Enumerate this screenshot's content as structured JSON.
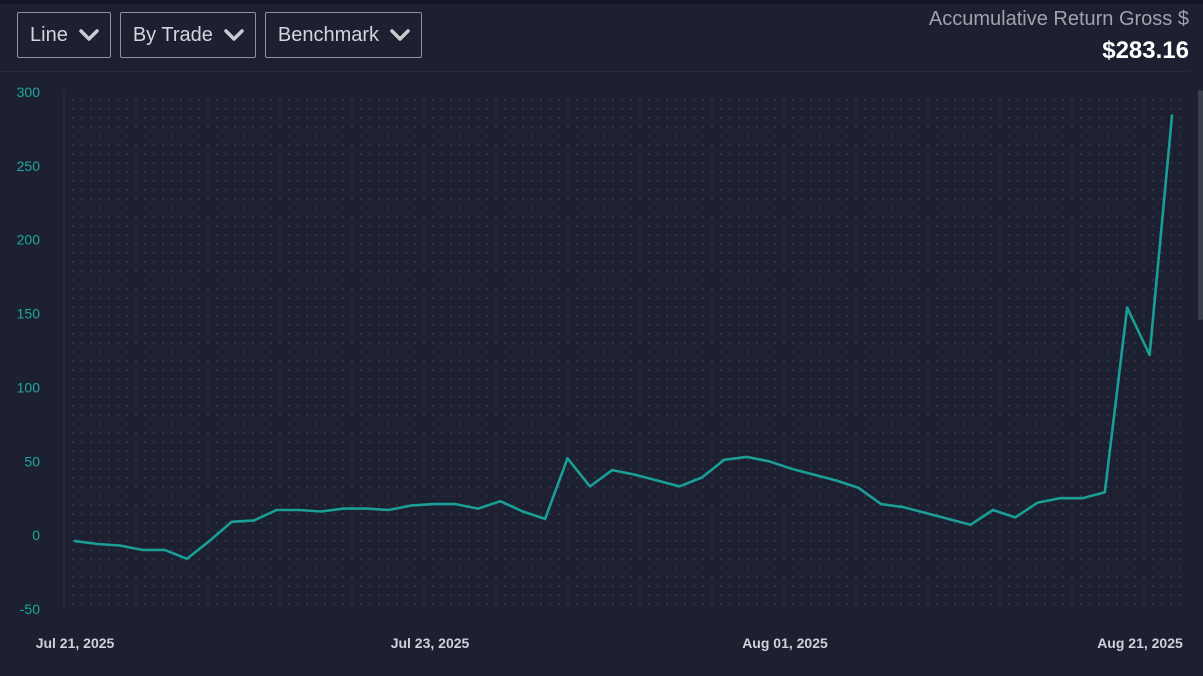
{
  "toolbar": {
    "chart_type": "Line",
    "grouping": "By Trade",
    "benchmark": "Benchmark"
  },
  "summary": {
    "title": "Accumulative Return Gross $",
    "value": "$283.16"
  },
  "colors": {
    "background": "#1c2030",
    "line": "#1a9e96",
    "y_tick": "#1fa89d",
    "x_tick": "#cfd2d8",
    "grid_dot": "#3a4052"
  },
  "icons": {
    "dropdown": "chevron-down-icon"
  },
  "chart_data": {
    "type": "line",
    "title": "",
    "xlabel": "",
    "ylabel": "",
    "ylim": [
      -50,
      300
    ],
    "y_ticks": [
      300,
      250,
      200,
      150,
      100,
      50,
      0,
      -50
    ],
    "x_tick_labels": [
      "Jul 21, 2025",
      "Jul 23, 2025",
      "Aug 01, 2025",
      "Aug 21, 2025"
    ],
    "grid": "dotted",
    "series": [
      {
        "values": [
          -4,
          -6,
          -7,
          -10,
          -10,
          -16,
          -4,
          9,
          10,
          17,
          17,
          16,
          18,
          18,
          17,
          20,
          21,
          21,
          18,
          23,
          16,
          11,
          52,
          33,
          44,
          41,
          37,
          33,
          39,
          51,
          53,
          50,
          45,
          41,
          37,
          32,
          21,
          19,
          15,
          11,
          7,
          17,
          12,
          22,
          25,
          25,
          29,
          154,
          122,
          284
        ]
      }
    ]
  }
}
